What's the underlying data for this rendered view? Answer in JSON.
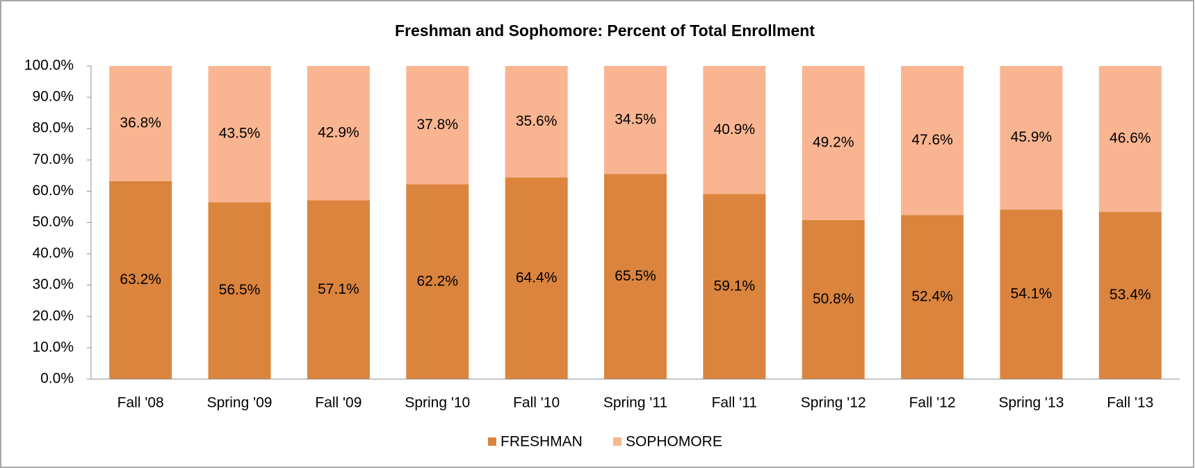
{
  "chart_data": {
    "type": "stacked_bar",
    "title": "Freshman and Sophomore: Percent of Total Enrollment",
    "categories": [
      "Fall '08",
      "Spring '09",
      "Fall '09",
      "Spring '10",
      "Fall '10",
      "Spring '11",
      "Fall '11",
      "Spring '12",
      "Fall '12",
      "Spring '13",
      "Fall '13"
    ],
    "series": [
      {
        "name": "FRESHMAN",
        "color": "#db843d",
        "values": [
          63.2,
          56.5,
          57.1,
          62.2,
          64.4,
          65.5,
          59.1,
          50.8,
          52.4,
          54.1,
          53.4
        ],
        "value_labels": [
          "63.2%",
          "56.5%",
          "57.1%",
          "62.2%",
          "64.4%",
          "65.5%",
          "59.1%",
          "50.8%",
          "52.4%",
          "54.1%",
          "53.4%"
        ]
      },
      {
        "name": "SOPHOMORE",
        "color": "#f9b591",
        "values": [
          36.8,
          43.5,
          42.9,
          37.8,
          35.6,
          34.5,
          40.9,
          49.2,
          47.6,
          45.9,
          46.6
        ],
        "value_labels": [
          "36.8%",
          "43.5%",
          "42.9%",
          "37.8%",
          "35.6%",
          "34.5%",
          "40.9%",
          "49.2%",
          "47.6%",
          "45.9%",
          "46.6%"
        ]
      }
    ],
    "ylim": [
      0,
      100
    ],
    "yticks": [
      {
        "value": 0,
        "label": "0.0%"
      },
      {
        "value": 10,
        "label": "10.0%"
      },
      {
        "value": 20,
        "label": "20.0%"
      },
      {
        "value": 30,
        "label": "30.0%"
      },
      {
        "value": 40,
        "label": "40.0%"
      },
      {
        "value": 50,
        "label": "50.0%"
      },
      {
        "value": 60,
        "label": "60.0%"
      },
      {
        "value": 70,
        "label": "70.0%"
      },
      {
        "value": 80,
        "label": "80.0%"
      },
      {
        "value": 90,
        "label": "90.0%"
      },
      {
        "value": 100,
        "label": "100.0%"
      }
    ],
    "grid": false,
    "legend": "bottom"
  }
}
